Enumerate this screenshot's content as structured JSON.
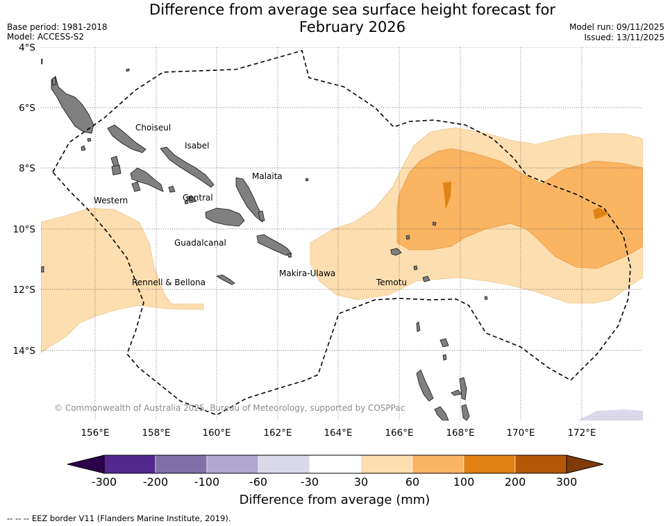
{
  "header": {
    "title_line1": "Difference from average sea surface height forecast for",
    "title_line2": "February 2026",
    "base_period": "Base period: 1981-2018",
    "model": "Model: ACCESS-S2",
    "model_run": "Model run: 09/11/2025",
    "issued": "Issued: 13/11/2025"
  },
  "map": {
    "lat_labels": [
      "4°S",
      "6°S",
      "8°S",
      "10°S",
      "12°S",
      "14°S"
    ],
    "lon_labels": [
      "156°E",
      "158°E",
      "160°E",
      "162°E",
      "164°E",
      "166°E",
      "168°E",
      "170°E",
      "172°E"
    ],
    "provinces": [
      "Choiseul",
      "Isabel",
      "Malaita",
      "Western",
      "Central",
      "Guadalcanal",
      "Makira-Ulawa",
      "Rennell & Bellona",
      "Temotu"
    ],
    "copyright": "© Commonwealth of Australia 2025, Bureau of Meteorology, supported by COSPPac",
    "land_color": "#808080",
    "eez_color": "#000000"
  },
  "colorbar": {
    "bins": [
      {
        "from": -300,
        "to": -200,
        "color": "#54278f"
      },
      {
        "from": -200,
        "to": -100,
        "color": "#8070aa"
      },
      {
        "from": -100,
        "to": -60,
        "color": "#b0a8d2"
      },
      {
        "from": -60,
        "to": -30,
        "color": "#d9d9ea"
      },
      {
        "from": -30,
        "to": 30,
        "color": "#ffffff"
      },
      {
        "from": 30,
        "to": 60,
        "color": "#fddeb0"
      },
      {
        "from": 60,
        "to": 100,
        "color": "#fab462"
      },
      {
        "from": 100,
        "to": 200,
        "color": "#e08214"
      },
      {
        "from": 200,
        "to": 300,
        "color": "#b35806"
      }
    ],
    "under_color": "#2d004b",
    "over_color": "#7f3b08",
    "labels": [
      "-300",
      "-200",
      "-100",
      "-60",
      "-30",
      "30",
      "60",
      "100",
      "200",
      "300"
    ],
    "title": "Difference from average (mm)"
  },
  "legend": {
    "eez": "--  --  -- EEZ border V11 (Flanders Marine Institute, 2019)."
  }
}
